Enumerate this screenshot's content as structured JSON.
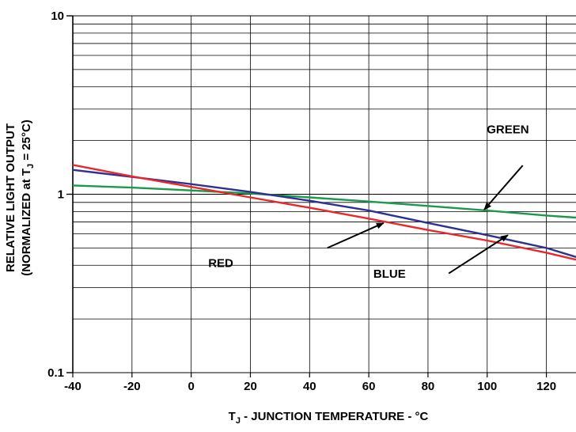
{
  "chart_data": {
    "type": "line",
    "title": "",
    "xlabel": {
      "main": "T",
      "sub": "J",
      "rest": " - JUNCTION TEMPERATURE - °C"
    },
    "ylabel": {
      "line1": "RELATIVE LIGHT OUTPUT",
      "line2_pre": "(NORMALIZED at T",
      "line2_sub": "J",
      "line2_post": " = 25°C)"
    },
    "xlim": [
      -40,
      130
    ],
    "ylim": [
      0.1,
      10
    ],
    "yscale": "log",
    "grid": true,
    "x_ticks": [
      -40,
      -20,
      0,
      20,
      40,
      60,
      80,
      100,
      120
    ],
    "x_tick_labels": [
      "-40",
      "-20",
      "0",
      "20",
      "40",
      "60",
      "80",
      "100",
      "120"
    ],
    "y_ticks": [
      0.1,
      1,
      10
    ],
    "y_tick_labels": [
      "0.1",
      "1",
      "10"
    ],
    "series": [
      {
        "name": "GREEN",
        "color": "#1a9a4a",
        "x": [
          -40,
          -20,
          0,
          20,
          40,
          60,
          80,
          100,
          120,
          130
        ],
        "y": [
          1.12,
          1.09,
          1.05,
          1.01,
          0.96,
          0.91,
          0.86,
          0.81,
          0.76,
          0.74
        ]
      },
      {
        "name": "BLUE",
        "color": "#2e3192",
        "x": [
          -40,
          -20,
          0,
          20,
          40,
          60,
          80,
          100,
          120,
          130
        ],
        "y": [
          1.37,
          1.25,
          1.14,
          1.03,
          0.92,
          0.81,
          0.69,
          0.59,
          0.5,
          0.445
        ]
      },
      {
        "name": "RED",
        "color": "#e8282b",
        "x": [
          -40,
          -20,
          0,
          20,
          40,
          60,
          80,
          100,
          120,
          130
        ],
        "y": [
          1.46,
          1.26,
          1.1,
          0.96,
          0.84,
          0.73,
          0.63,
          0.55,
          0.47,
          0.43
        ]
      }
    ],
    "annotations": [
      {
        "label": "GREEN",
        "text_x": 107,
        "text_y": 2.2,
        "arrow_from": [
          112,
          1.45
        ],
        "arrow_to": [
          99,
          0.82
        ]
      },
      {
        "label": "RED",
        "text_x": 10,
        "text_y": 0.39,
        "arrow_from": [
          46,
          0.5
        ],
        "arrow_to": [
          65,
          0.69
        ]
      },
      {
        "label": "BLUE",
        "text_x": 67,
        "text_y": 0.34,
        "arrow_from": [
          87,
          0.36
        ],
        "arrow_to": [
          107,
          0.59
        ]
      }
    ]
  }
}
